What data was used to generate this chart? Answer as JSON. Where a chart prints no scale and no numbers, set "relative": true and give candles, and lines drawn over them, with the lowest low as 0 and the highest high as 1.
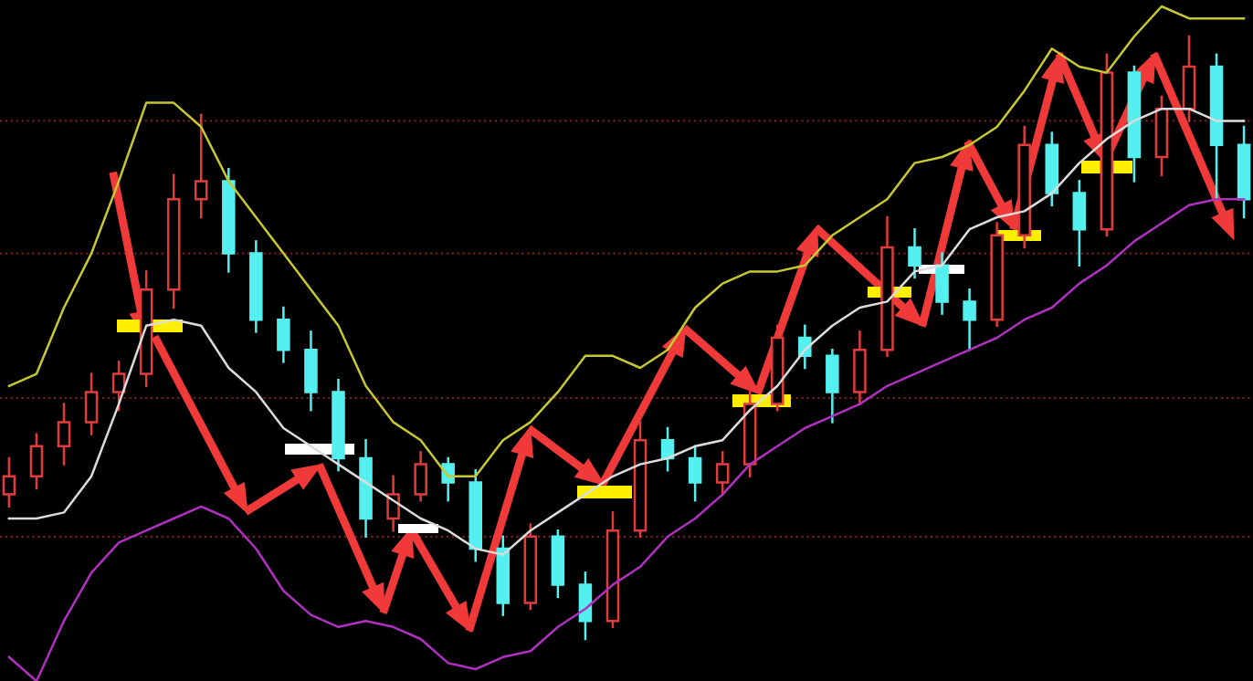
{
  "chart_data": {
    "type": "candlestick",
    "relative": true,
    "categories": [
      null,
      null,
      null,
      null,
      null,
      null,
      null,
      null,
      null,
      null,
      null,
      null,
      null,
      null,
      null,
      null,
      null,
      null,
      null,
      null,
      null,
      null,
      null,
      null,
      null,
      null,
      null,
      null,
      null,
      null,
      null,
      null,
      null,
      null,
      null,
      null,
      null,
      null,
      null,
      null,
      null,
      null,
      null,
      null,
      null,
      null
    ],
    "ohlc": [
      [
        0.24,
        0.3,
        0.22,
        0.27
      ],
      [
        0.27,
        0.34,
        0.25,
        0.32
      ],
      [
        0.32,
        0.39,
        0.29,
        0.36
      ],
      [
        0.36,
        0.44,
        0.34,
        0.41
      ],
      [
        0.41,
        0.46,
        0.38,
        0.44
      ],
      [
        0.44,
        0.61,
        0.42,
        0.58
      ],
      [
        0.58,
        0.77,
        0.55,
        0.73
      ],
      [
        0.73,
        0.87,
        0.7,
        0.76
      ],
      [
        0.76,
        0.78,
        0.61,
        0.64
      ],
      [
        0.64,
        0.66,
        0.51,
        0.53
      ],
      [
        0.53,
        0.55,
        0.46,
        0.48
      ],
      [
        0.48,
        0.51,
        0.38,
        0.41
      ],
      [
        0.41,
        0.43,
        0.28,
        0.3
      ],
      [
        0.3,
        0.33,
        0.17,
        0.2
      ],
      [
        0.2,
        0.27,
        0.18,
        0.24
      ],
      [
        0.24,
        0.31,
        0.23,
        0.29
      ],
      [
        0.29,
        0.3,
        0.23,
        0.26
      ],
      [
        0.26,
        0.28,
        0.13,
        0.15
      ],
      [
        0.15,
        0.17,
        0.04,
        0.06
      ],
      [
        0.06,
        0.19,
        0.05,
        0.17
      ],
      [
        0.17,
        0.18,
        0.07,
        0.09
      ],
      [
        0.09,
        0.11,
        0.0,
        0.03
      ],
      [
        0.03,
        0.21,
        0.02,
        0.18
      ],
      [
        0.18,
        0.36,
        0.17,
        0.33
      ],
      [
        0.33,
        0.35,
        0.28,
        0.3
      ],
      [
        0.3,
        0.32,
        0.23,
        0.26
      ],
      [
        0.26,
        0.31,
        0.24,
        0.29
      ],
      [
        0.29,
        0.42,
        0.27,
        0.39
      ],
      [
        0.39,
        0.52,
        0.38,
        0.5
      ],
      [
        0.5,
        0.52,
        0.45,
        0.47
      ],
      [
        0.47,
        0.48,
        0.36,
        0.41
      ],
      [
        0.41,
        0.51,
        0.39,
        0.48
      ],
      [
        0.48,
        0.7,
        0.47,
        0.65
      ],
      [
        0.65,
        0.68,
        0.6,
        0.62
      ],
      [
        0.62,
        0.64,
        0.54,
        0.56
      ],
      [
        0.56,
        0.58,
        0.48,
        0.53
      ],
      [
        0.53,
        0.69,
        0.52,
        0.67
      ],
      [
        0.67,
        0.85,
        0.65,
        0.82
      ],
      [
        0.82,
        0.84,
        0.72,
        0.74
      ],
      [
        0.74,
        0.76,
        0.62,
        0.68
      ],
      [
        0.68,
        0.97,
        0.67,
        0.94
      ],
      [
        0.94,
        0.95,
        0.76,
        0.8
      ],
      [
        0.8,
        0.9,
        0.77,
        0.88
      ],
      [
        0.88,
        1.0,
        0.86,
        0.95
      ],
      [
        0.95,
        0.97,
        0.73,
        0.82
      ],
      [
        0.82,
        0.85,
        0.7,
        0.73
      ]
    ],
    "colors": [
      "#e03c3c",
      "#e03c3c",
      "#e03c3c",
      "#e03c3c",
      "#e03c3c",
      "#e03c3c",
      "#e03c3c",
      "#e03c3c",
      "#54f0f0",
      "#54f0f0",
      "#54f0f0",
      "#54f0f0",
      "#54f0f0",
      "#54f0f0",
      "#e03c3c",
      "#e03c3c",
      "#54f0f0",
      "#54f0f0",
      "#54f0f0",
      "#e03c3c",
      "#54f0f0",
      "#54f0f0",
      "#e03c3c",
      "#e03c3c",
      "#54f0f0",
      "#54f0f0",
      "#e03c3c",
      "#e03c3c",
      "#e03c3c",
      "#54f0f0",
      "#54f0f0",
      "#e03c3c",
      "#e03c3c",
      "#54f0f0",
      "#54f0f0",
      "#54f0f0",
      "#e03c3c",
      "#e03c3c",
      "#54f0f0",
      "#54f0f0",
      "#e03c3c",
      "#54f0f0",
      "#e03c3c",
      "#e03c3c",
      "#54f0f0",
      "#54f0f0"
    ],
    "series": [
      {
        "type": "line",
        "color": "#c8c832",
        "values": [
          0.42,
          0.44,
          0.55,
          0.64,
          0.76,
          0.89,
          0.89,
          0.85,
          0.76,
          0.7,
          0.64,
          0.58,
          0.52,
          0.42,
          0.36,
          0.33,
          0.27,
          0.27,
          0.33,
          0.36,
          0.41,
          0.47,
          0.47,
          0.45,
          0.48,
          0.55,
          0.59,
          0.61,
          0.61,
          0.62,
          0.67,
          0.7,
          0.73,
          0.79,
          0.8,
          0.82,
          0.85,
          0.91,
          0.98,
          0.95,
          0.94,
          1.0,
          1.05,
          1.03,
          1.03,
          1.03
        ]
      },
      {
        "type": "line",
        "color": "#dcdcdc",
        "values": [
          0.2,
          0.2,
          0.21,
          0.27,
          0.39,
          0.52,
          0.53,
          0.52,
          0.45,
          0.41,
          0.35,
          0.32,
          0.29,
          0.26,
          0.23,
          0.2,
          0.18,
          0.15,
          0.14,
          0.18,
          0.21,
          0.24,
          0.27,
          0.29,
          0.3,
          0.32,
          0.33,
          0.38,
          0.42,
          0.48,
          0.52,
          0.55,
          0.56,
          0.61,
          0.62,
          0.68,
          0.7,
          0.71,
          0.74,
          0.79,
          0.83,
          0.86,
          0.88,
          0.88,
          0.86,
          0.86
        ]
      },
      {
        "type": "line",
        "color": "#b030c0",
        "values": [
          -0.03,
          -0.07,
          0.03,
          0.11,
          0.16,
          0.18,
          0.2,
          0.22,
          0.2,
          0.15,
          0.08,
          0.04,
          0.02,
          0.03,
          0.02,
          0.0,
          -0.04,
          -0.05,
          -0.03,
          -0.02,
          0.02,
          0.05,
          0.09,
          0.12,
          0.17,
          0.2,
          0.24,
          0.29,
          0.32,
          0.35,
          0.37,
          0.39,
          0.42,
          0.44,
          0.46,
          0.48,
          0.5,
          0.53,
          0.55,
          0.59,
          0.62,
          0.66,
          0.69,
          0.72,
          0.73,
          0.73
        ]
      }
    ],
    "ref_lines": [
      {
        "axis": "y",
        "value": 0.86,
        "color": "#7a1e1e",
        "line_style": "dotted"
      },
      {
        "axis": "y",
        "value": 0.64,
        "color": "#7a1e1e",
        "line_style": "dotted"
      },
      {
        "axis": "y",
        "value": 0.4,
        "color": "#7a1e1e",
        "line_style": "dotted"
      },
      {
        "axis": "y",
        "value": 0.17,
        "color": "#7a1e1e",
        "line_style": "dotted"
      }
    ],
    "line_style": "solid"
  }
}
